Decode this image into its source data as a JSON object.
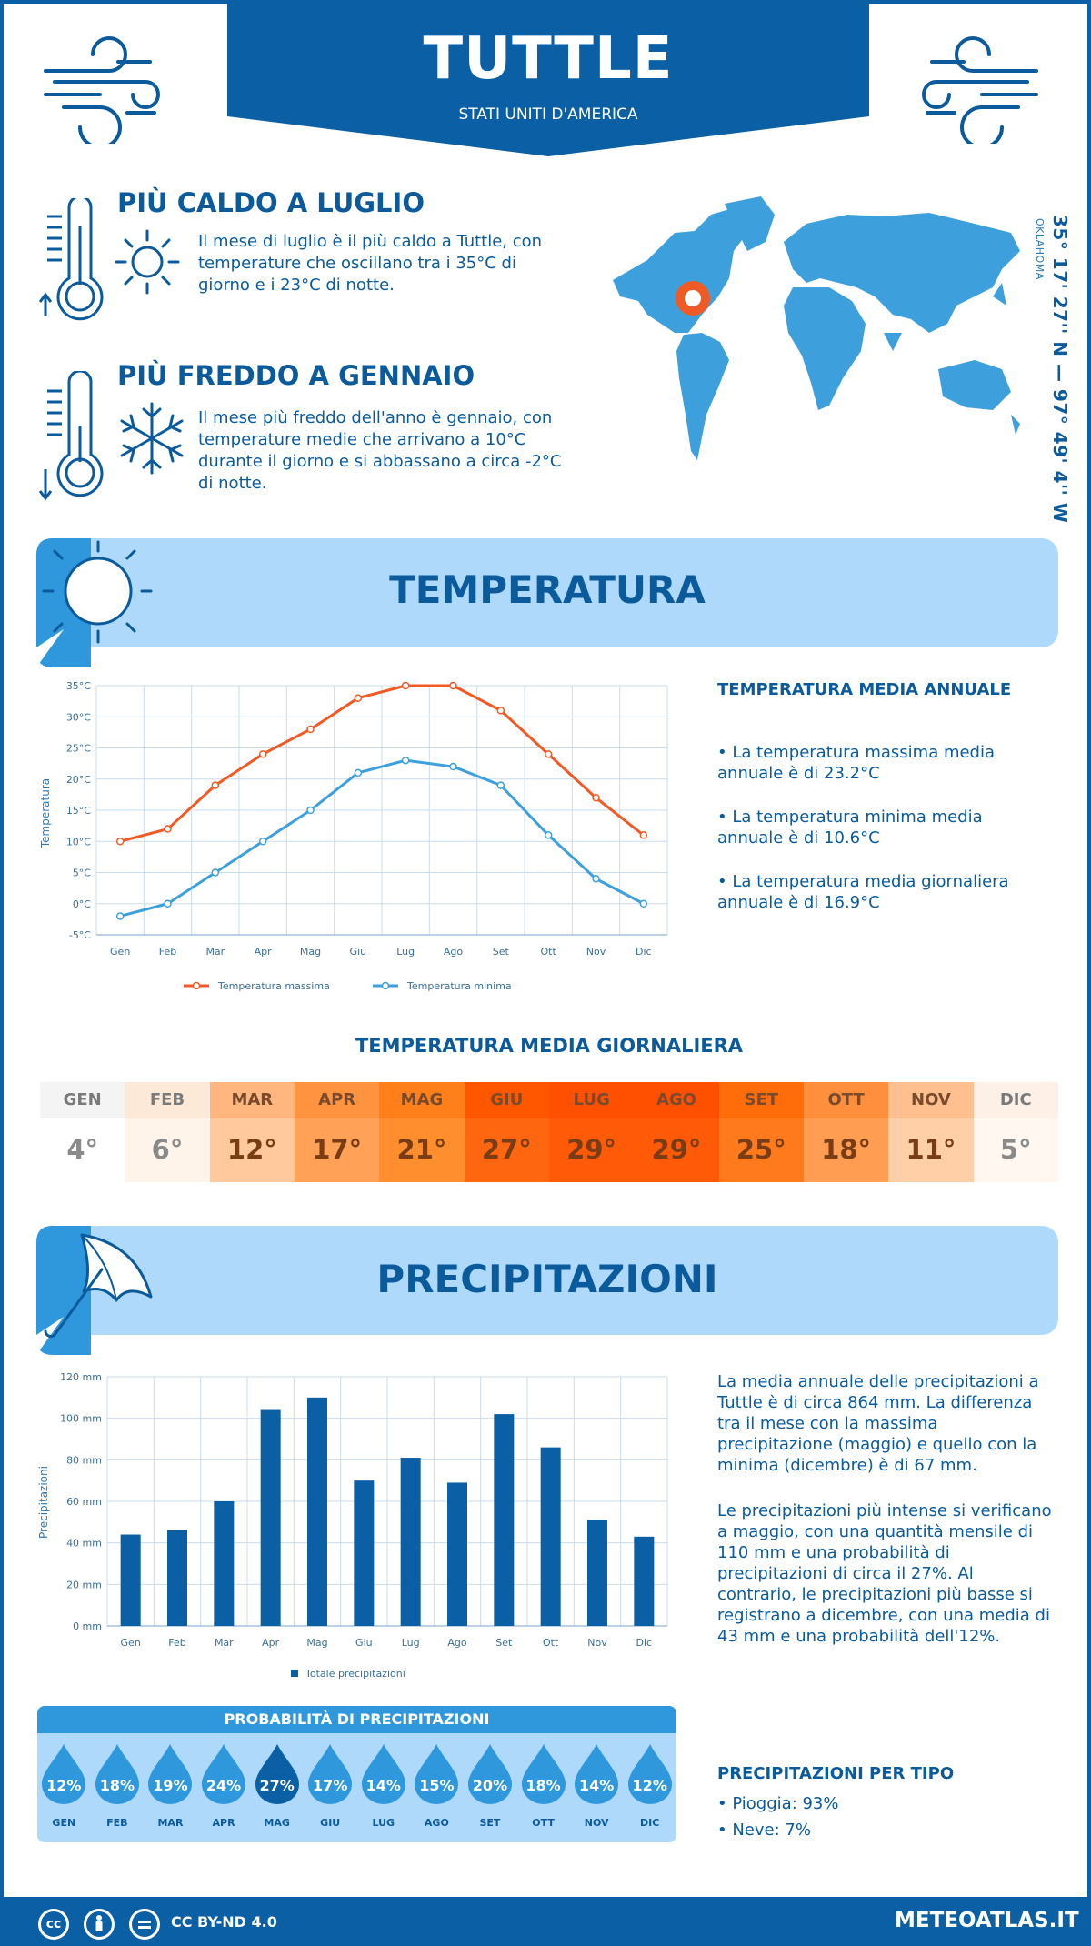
{
  "header": {
    "city": "TUTTLE",
    "country": "STATI UNITI D'AMERICA"
  },
  "hottest": {
    "title": "PIÙ CALDO A LUGLIO",
    "text": "Il mese di luglio è il più caldo a Tuttle, con temperature che oscillano tra i 35°C di giorno e i 23°C di notte."
  },
  "coldest": {
    "title": "PIÙ FREDDO A GENNAIO",
    "text": "Il mese più freddo dell'anno è gennaio, con temperature medie che arrivano a 10°C durante il giorno e si abbassano a circa -2°C di notte."
  },
  "location": {
    "coords": "35° 17' 27'' N — 97° 49' 4'' W",
    "region": "OKLAHOMA"
  },
  "temperature_section": {
    "title": "TEMPERATURA",
    "annual_heading": "TEMPERATURA MEDIA ANNUALE",
    "bullets": [
      "• La temperatura massima media annuale è di 23.2°C",
      "• La temperatura minima media annuale è di 10.6°C",
      "• La temperatura media giornaliera annuale è di 16.9°C"
    ]
  },
  "temp_chart": {
    "type": "line",
    "categories": [
      "Gen",
      "Feb",
      "Mar",
      "Apr",
      "Mag",
      "Giu",
      "Lug",
      "Ago",
      "Set",
      "Ott",
      "Nov",
      "Dic"
    ],
    "y_ticks": [
      "-5°C",
      "0°C",
      "5°C",
      "10°C",
      "15°C",
      "20°C",
      "25°C",
      "30°C",
      "35°C"
    ],
    "ylabel": "Temperatura",
    "ylim": [
      -5,
      35
    ],
    "grid": true,
    "series": [
      {
        "name": "Temperatura massima",
        "color": "#f05a24",
        "values": [
          10,
          12,
          19,
          24,
          28,
          33,
          35,
          35,
          31,
          24,
          17,
          11
        ]
      },
      {
        "name": "Temperatura minima",
        "color": "#3da0dc",
        "values": [
          -2,
          0,
          5,
          10,
          15,
          21,
          23,
          22,
          19,
          11,
          4,
          0
        ]
      }
    ],
    "legend_position": "bottom"
  },
  "daily": {
    "title": "TEMPERATURA MEDIA GIORNALIERA",
    "months": [
      "GEN",
      "FEB",
      "MAR",
      "APR",
      "MAG",
      "GIU",
      "LUG",
      "AGO",
      "SET",
      "OTT",
      "NOV",
      "DIC"
    ],
    "values": [
      "4°",
      "6°",
      "12°",
      "17°",
      "21°",
      "27°",
      "29°",
      "29°",
      "25°",
      "18°",
      "11°",
      "5°"
    ],
    "colors": [
      "#ffffff",
      "#fff4ea",
      "#ffc89d",
      "#ffa257",
      "#ff8e2e",
      "#ff6610",
      "#ff5a07",
      "#ff5a07",
      "#ff7a1c",
      "#ff9e52",
      "#ffcfa8",
      "#fff7f0"
    ],
    "month_colors": [
      "#f4f4f4",
      "#fde9d8",
      "#ffb77f",
      "#ff9340",
      "#ff801b",
      "#ff5700",
      "#ff4f00",
      "#ff4f00",
      "#ff6c0a",
      "#ff8f3c",
      "#ffbf8f",
      "#fdf0e6"
    ]
  },
  "precip_section": {
    "title": "PRECIPITAZIONI",
    "text1": "La media annuale delle precipitazioni a Tuttle è di circa 864 mm. La differenza tra il mese con la massima precipitazione (maggio) e quello con la minima (dicembre) è di 67 mm.",
    "text2": "Le precipitazioni più intense si verificano a maggio, con una quantità mensile di 110 mm e una probabilità di precipitazioni di circa il 27%. Al contrario, le precipitazioni più basse si registrano a dicembre, con una media di 43 mm e una probabilità dell'12%.",
    "type_heading": "PRECIPITAZIONI PER TIPO",
    "types": [
      "• Pioggia: 93%",
      "• Neve: 7%"
    ]
  },
  "precip_chart": {
    "type": "bar",
    "categories": [
      "Gen",
      "Feb",
      "Mar",
      "Apr",
      "Mag",
      "Giu",
      "Lug",
      "Ago",
      "Set",
      "Ott",
      "Nov",
      "Dic"
    ],
    "values": [
      44,
      46,
      60,
      104,
      110,
      70,
      81,
      69,
      102,
      86,
      51,
      43
    ],
    "y_ticks": [
      "0 mm",
      "20 mm",
      "40 mm",
      "60 mm",
      "80 mm",
      "100 mm",
      "120 mm"
    ],
    "ylabel": "Precipitazioni",
    "ylim": [
      0,
      120
    ],
    "series_name": "Totale precipitazioni",
    "color": "#0b5fa4",
    "grid": true,
    "legend_position": "bottom"
  },
  "probability": {
    "title": "PROBABILITÀ DI PRECIPITAZIONI",
    "months": [
      "GEN",
      "FEB",
      "MAR",
      "APR",
      "MAG",
      "GIU",
      "LUG",
      "AGO",
      "SET",
      "OTT",
      "NOV",
      "DIC"
    ],
    "values": [
      "12%",
      "18%",
      "19%",
      "24%",
      "27%",
      "17%",
      "14%",
      "15%",
      "20%",
      "18%",
      "14%",
      "12%"
    ],
    "highlight_index": 4
  },
  "footer": {
    "license": "CC BY-ND 4.0",
    "site": "METEOATLAS.IT",
    "icons": [
      "cc-icon",
      "by-icon",
      "nd-icon"
    ]
  }
}
